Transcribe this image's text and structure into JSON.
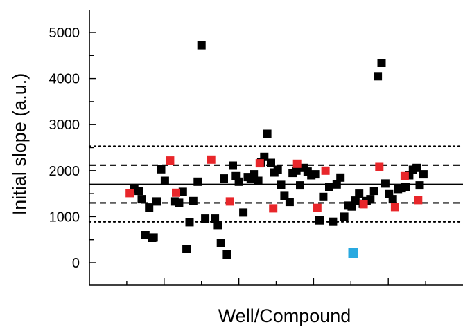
{
  "chart_data": {
    "type": "scatter",
    "xlabel": "Well/Compound",
    "ylabel": "Initial slope (a.u.)",
    "xlim": [
      0,
      100
    ],
    "ylim": [
      -500,
      5500
    ],
    "yticks": [
      0,
      1000,
      2000,
      3000,
      4000,
      5000
    ],
    "xtick_labels_shown": false,
    "reference_lines": {
      "mean": 1700,
      "dashed": [
        1300,
        2120
      ],
      "dotted": [
        890,
        2530
      ]
    },
    "colors": {
      "black": "#000000",
      "red": "#e8262a",
      "blue": "#29a9e0",
      "axis": "#000000"
    },
    "series": [
      {
        "color": "black",
        "x": [
          12.0,
          13.2,
          14.0,
          15.0,
          16.0,
          16.8,
          17.2,
          18.0,
          19.2,
          20.2,
          22.8,
          24.0,
          25.0,
          26.0,
          26.8,
          27.8,
          29.0,
          30.0,
          31.0,
          33.6,
          34.4,
          35.2,
          36.0,
          36.8,
          38.4,
          39.2,
          40.0,
          41.2,
          42.4,
          43.2,
          44.0,
          45.2,
          46.0,
          46.8,
          47.6,
          48.6,
          49.5,
          50.4,
          51.3,
          52.2,
          53.6,
          54.4,
          55.4,
          56.4,
          57.4,
          58.4,
          59.4,
          60.4,
          61.6,
          62.6,
          64.2,
          65.2,
          66.2,
          67.2,
          68.2,
          69.2,
          70.2,
          71.2,
          72.2,
          73.2,
          74.2,
          75.2,
          76.2,
          77.2,
          78.2,
          79.2,
          80.2,
          81.2,
          82.6,
          83.6,
          84.6,
          85.6,
          86.6,
          87.6,
          88.4,
          89.4
        ],
        "y": [
          1610,
          1560,
          1380,
          600,
          1200,
          540,
          550,
          1330,
          2030,
          1780,
          1330,
          1300,
          1540,
          300,
          880,
          1340,
          1760,
          4720,
          960,
          960,
          820,
          420,
          1830,
          180,
          2110,
          1880,
          1760,
          1090,
          1860,
          1830,
          1920,
          1780,
          2180,
          2300,
          2800,
          2170,
          1960,
          2020,
          1690,
          1450,
          1320,
          1950,
          2000,
          1680,
          2060,
          1980,
          1900,
          1920,
          920,
          1430,
          1640,
          890,
          1700,
          1850,
          1000,
          1240,
          1220,
          1350,
          1500,
          1280,
          1340,
          1380,
          1560,
          4050,
          4340,
          1720,
          1490,
          1380,
          1600,
          1620,
          1640,
          1900,
          2020,
          2060,
          1680,
          1920
        ]
      },
      {
        "color": "red",
        "x": [
          10.8,
          21.6,
          23.2,
          32.6,
          37.6,
          45.6,
          49.2,
          55.6,
          61.0,
          63.2,
          73.4,
          77.6,
          81.8,
          84.4,
          88.0
        ],
        "y": [
          1510,
          2220,
          1520,
          2240,
          1330,
          2160,
          1180,
          2150,
          1190,
          2000,
          1270,
          2080,
          1210,
          1880,
          1360
        ]
      },
      {
        "color": "blue",
        "x": [
          70.6
        ],
        "y": [
          210
        ]
      }
    ]
  }
}
